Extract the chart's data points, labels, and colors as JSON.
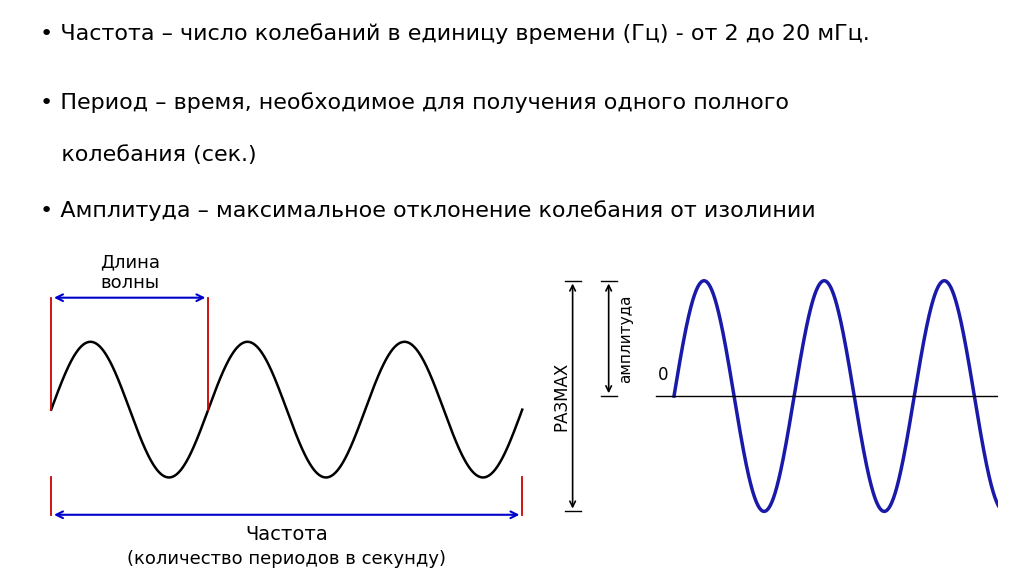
{
  "bg_color": "#ffffff",
  "wave1_color": "#000000",
  "wave2_color": "#1a1aaa",
  "arrow_color": "#0000cc",
  "red_line_color": "#cc0000",
  "box_bg": "#ffffd0",
  "bullet_line1": "• Частота – число колебаний в единицу времени (Гц) - от 2 до 20 мГц.",
  "bullet_line2": "• Период – время, необходимое для получения одного полного",
  "bullet_line2b": "   колебания (сек.)",
  "bullet_line3": "• Амплитуда – максимальное отклонение колебания от изолинии",
  "dlina_volny": "Длина\nволны",
  "chastota": "Частота",
  "chastota2": "(количество периодов в секунду)",
  "razmax": "РАЗМАХ",
  "amplituda": "амплитуда",
  "zero": "0",
  "text_fontsize": 16,
  "label_fontsize": 13
}
